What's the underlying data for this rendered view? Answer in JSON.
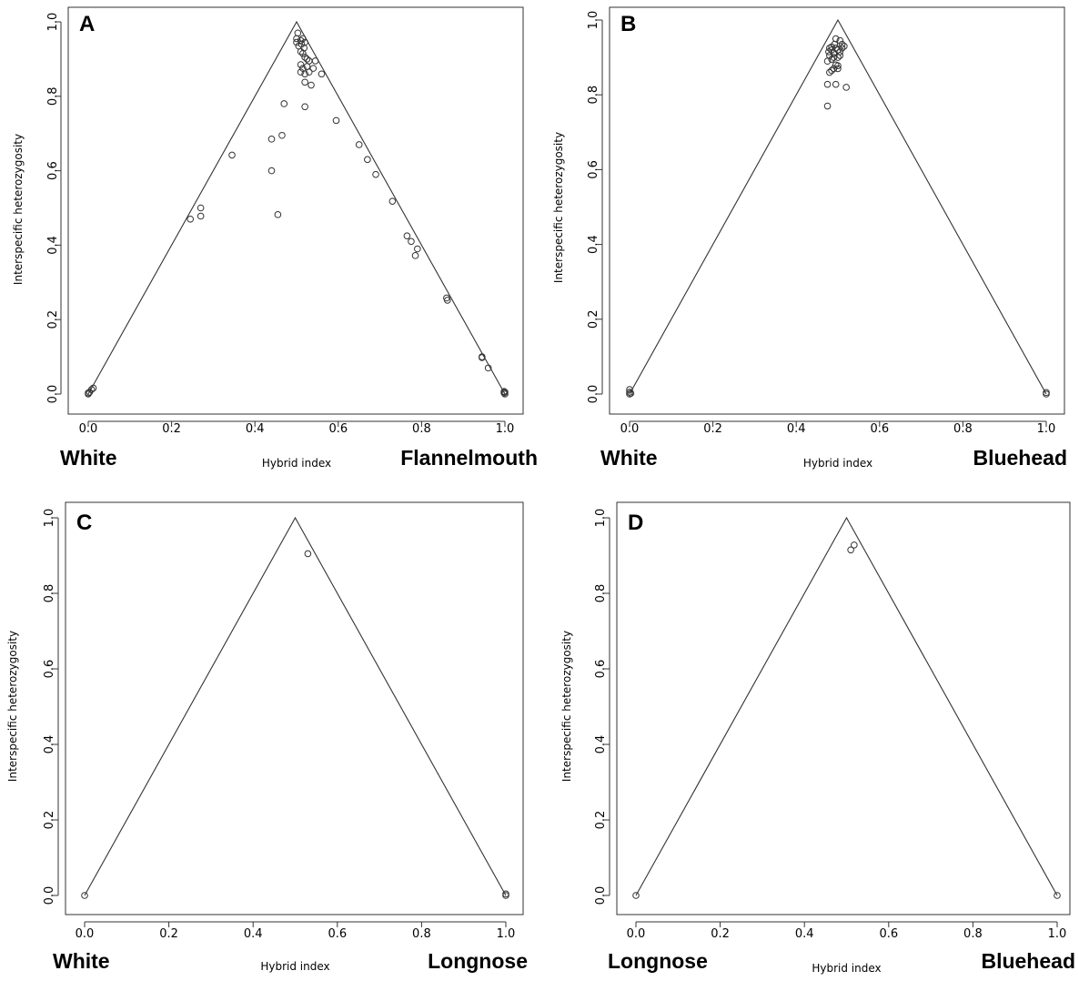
{
  "chart_data": [
    {
      "panel": "A",
      "type": "scatter",
      "xlabel": "Hybrid index",
      "ylabel": "Interspecific heterozygosity",
      "left_label": "White",
      "right_label": "Flannelmouth",
      "xlim": [
        0,
        1
      ],
      "ylim": [
        0,
        1
      ],
      "xticks": [
        "0.0",
        "0.2",
        "0.4",
        "0.6",
        "0.8",
        "1.0"
      ],
      "yticks": [
        "0.0",
        "0.2",
        "0.4",
        "0.6",
        "0.8",
        "1.0"
      ],
      "points": [
        [
          0.0,
          0.0
        ],
        [
          0.003,
          0.005
        ],
        [
          0.008,
          0.012
        ],
        [
          0.012,
          0.016
        ],
        [
          0.0,
          0.003
        ],
        [
          0.245,
          0.47
        ],
        [
          0.27,
          0.5
        ],
        [
          0.27,
          0.478
        ],
        [
          0.345,
          0.642
        ],
        [
          0.44,
          0.685
        ],
        [
          0.44,
          0.6
        ],
        [
          0.455,
          0.482
        ],
        [
          0.465,
          0.695
        ],
        [
          0.47,
          0.78
        ],
        [
          0.5,
          0.955
        ],
        [
          0.5,
          0.945
        ],
        [
          0.503,
          0.97
        ],
        [
          0.505,
          0.935
        ],
        [
          0.51,
          0.95
        ],
        [
          0.51,
          0.92
        ],
        [
          0.512,
          0.94
        ],
        [
          0.515,
          0.955
        ],
        [
          0.515,
          0.915
        ],
        [
          0.518,
          0.93
        ],
        [
          0.52,
          0.945
        ],
        [
          0.52,
          0.905
        ],
        [
          0.525,
          0.9
        ],
        [
          0.525,
          0.88
        ],
        [
          0.51,
          0.885
        ],
        [
          0.51,
          0.865
        ],
        [
          0.515,
          0.875
        ],
        [
          0.52,
          0.86
        ],
        [
          0.53,
          0.865
        ],
        [
          0.53,
          0.895
        ],
        [
          0.54,
          0.875
        ],
        [
          0.545,
          0.895
        ],
        [
          0.52,
          0.838
        ],
        [
          0.535,
          0.83
        ],
        [
          0.56,
          0.86
        ],
        [
          0.52,
          0.772
        ],
        [
          0.595,
          0.735
        ],
        [
          0.65,
          0.67
        ],
        [
          0.67,
          0.63
        ],
        [
          0.69,
          0.59
        ],
        [
          0.73,
          0.518
        ],
        [
          0.765,
          0.425
        ],
        [
          0.775,
          0.41
        ],
        [
          0.79,
          0.39
        ],
        [
          0.785,
          0.372
        ],
        [
          0.86,
          0.258
        ],
        [
          0.862,
          0.252
        ],
        [
          0.945,
          0.1
        ],
        [
          0.945,
          0.098
        ],
        [
          0.96,
          0.07
        ],
        [
          0.998,
          0.003
        ],
        [
          0.998,
          0.007
        ],
        [
          1.0,
          0.0
        ],
        [
          1.0,
          0.005
        ]
      ]
    },
    {
      "panel": "B",
      "type": "scatter",
      "xlabel": "Hybrid index",
      "ylabel": "Interspecific heterozygosity",
      "left_label": "White",
      "right_label": "Bluehead",
      "xlim": [
        0,
        1
      ],
      "ylim": [
        0,
        1
      ],
      "xticks": [
        "0.0",
        "0.2",
        "0.4",
        "0.6",
        "0.8",
        "1.0"
      ],
      "yticks": [
        "0.0",
        "0.2",
        "0.4",
        "0.6",
        "0.8",
        "1.0"
      ],
      "points": [
        [
          0.0,
          0.0
        ],
        [
          0.0,
          0.005
        ],
        [
          0.0,
          0.012
        ],
        [
          0.003,
          0.002
        ],
        [
          0.475,
          0.77
        ],
        [
          0.475,
          0.828
        ],
        [
          0.495,
          0.828
        ],
        [
          0.52,
          0.82
        ],
        [
          0.48,
          0.86
        ],
        [
          0.485,
          0.865
        ],
        [
          0.49,
          0.87
        ],
        [
          0.5,
          0.87
        ],
        [
          0.495,
          0.88
        ],
        [
          0.5,
          0.878
        ],
        [
          0.475,
          0.89
        ],
        [
          0.485,
          0.895
        ],
        [
          0.49,
          0.9
        ],
        [
          0.48,
          0.905
        ],
        [
          0.5,
          0.9
        ],
        [
          0.505,
          0.905
        ],
        [
          0.478,
          0.915
        ],
        [
          0.485,
          0.92
        ],
        [
          0.49,
          0.912
        ],
        [
          0.495,
          0.925
        ],
        [
          0.5,
          0.92
        ],
        [
          0.505,
          0.915
        ],
        [
          0.51,
          0.925
        ],
        [
          0.51,
          0.935
        ],
        [
          0.515,
          0.93
        ],
        [
          0.505,
          0.945
        ],
        [
          0.495,
          0.95
        ],
        [
          0.485,
          0.928
        ],
        [
          0.48,
          0.925
        ],
        [
          0.492,
          0.935
        ],
        [
          1.0,
          0.0
        ],
        [
          1.0,
          0.004
        ]
      ]
    },
    {
      "panel": "C",
      "type": "scatter",
      "xlabel": "Hybrid index",
      "ylabel": "Interspecific heterozygosity",
      "left_label": "White",
      "right_label": "Longnose",
      "xlim": [
        0,
        1
      ],
      "ylim": [
        0,
        1
      ],
      "xticks": [
        "0.0",
        "0.2",
        "0.4",
        "0.6",
        "0.8",
        "1.0"
      ],
      "yticks": [
        "0.0",
        "0.2",
        "0.4",
        "0.6",
        "0.8",
        "1.0"
      ],
      "points": [
        [
          0.0,
          0.0
        ],
        [
          0.53,
          0.905
        ],
        [
          1.0,
          0.0
        ],
        [
          1.0,
          0.004
        ]
      ]
    },
    {
      "panel": "D",
      "type": "scatter",
      "xlabel": "Hybrid index",
      "ylabel": "Interspecific heterozygosity",
      "left_label": "Longnose",
      "right_label": "Bluehead",
      "xlim": [
        0,
        1
      ],
      "ylim": [
        0,
        1
      ],
      "xticks": [
        "0.0",
        "0.2",
        "0.4",
        "0.6",
        "0.8",
        "1.0"
      ],
      "yticks": [
        "0.0",
        "0.2",
        "0.4",
        "0.6",
        "0.8",
        "1.0"
      ],
      "points": [
        [
          0.0,
          0.0
        ],
        [
          0.51,
          0.915
        ],
        [
          0.518,
          0.928
        ],
        [
          1.0,
          0.0
        ]
      ]
    }
  ]
}
